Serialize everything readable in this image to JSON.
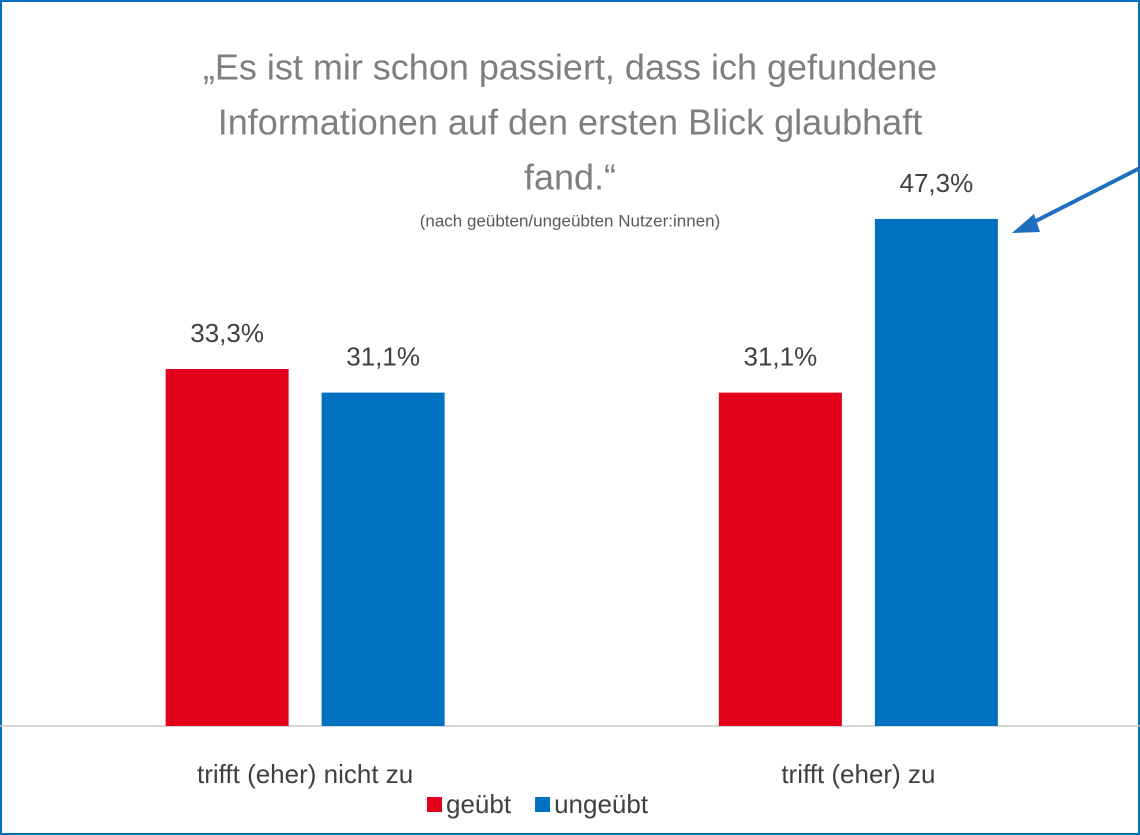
{
  "chart_data": {
    "type": "bar",
    "title": [
      "„Es ist mir schon passiert, dass ich gefundene",
      "Informationen auf den ersten Blick glaubhaft",
      "fand.“"
    ],
    "subtitle": "(nach geübten/ungeübten Nutzer:innen)",
    "categories": [
      "trifft (eher) nicht zu",
      "trifft (eher) zu"
    ],
    "series": [
      {
        "name": "geübt",
        "color": "#e2001a",
        "values": [
          33.3,
          31.1
        ],
        "value_labels": [
          "33,3%",
          "31,1%"
        ]
      },
      {
        "name": "ungeübt",
        "color": "#0070c0",
        "values": [
          31.1,
          47.3
        ],
        "value_labels": [
          "31,1%",
          "47,3%"
        ]
      }
    ],
    "ylim": [
      0,
      50
    ]
  }
}
